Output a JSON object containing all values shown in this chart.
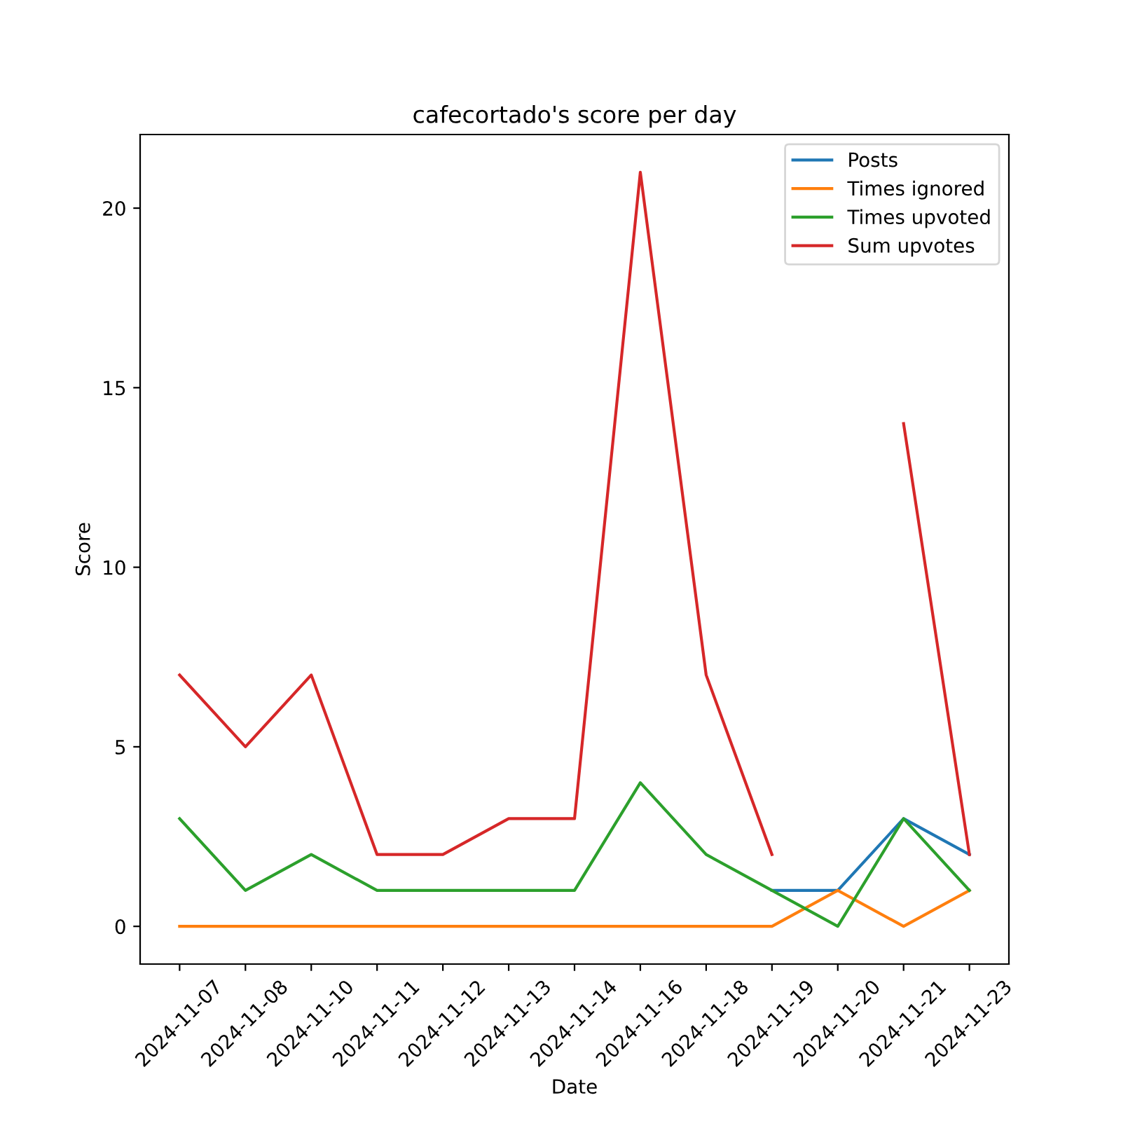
{
  "chart_data": {
    "type": "line",
    "title": "cafecortado's score per day",
    "xlabel": "Date",
    "ylabel": "Score",
    "categories": [
      "2024-11-07",
      "2024-11-08",
      "2024-11-10",
      "2024-11-11",
      "2024-11-12",
      "2024-11-13",
      "2024-11-14",
      "2024-11-16",
      "2024-11-18",
      "2024-11-19",
      "2024-11-20",
      "2024-11-21",
      "2024-11-23"
    ],
    "series": [
      {
        "name": "Posts",
        "color": "#1f77b4",
        "values": [
          null,
          null,
          null,
          null,
          null,
          null,
          null,
          null,
          null,
          1,
          1,
          3,
          2
        ]
      },
      {
        "name": "Times ignored",
        "color": "#ff7f0e",
        "values": [
          0,
          0,
          0,
          0,
          0,
          0,
          0,
          0,
          0,
          0,
          1,
          0,
          1
        ]
      },
      {
        "name": "Times upvoted",
        "color": "#2ca02c",
        "values": [
          3,
          1,
          2,
          1,
          1,
          1,
          1,
          4,
          2,
          1,
          0,
          3,
          1
        ]
      },
      {
        "name": "Sum upvotes",
        "color": "#d62728",
        "values": [
          7,
          5,
          7,
          2,
          2,
          3,
          3,
          21,
          7,
          2,
          null,
          14,
          2
        ]
      }
    ],
    "ylim": [
      -1.05,
      22.05
    ],
    "yticks": [
      0,
      5,
      10,
      15,
      20
    ],
    "legend": "top right",
    "grid": false,
    "marker": "none",
    "line_style": "solid"
  }
}
